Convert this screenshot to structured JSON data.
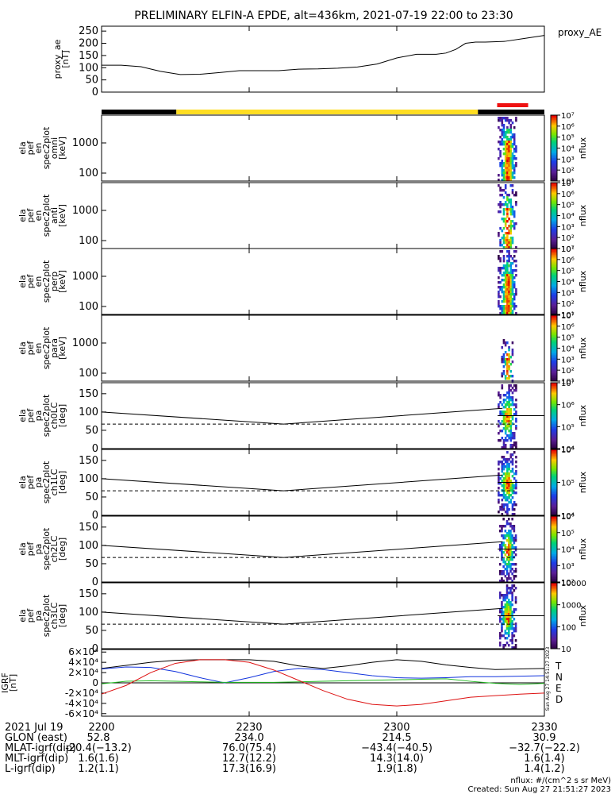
{
  "title": "PRELIMINARY ELFIN-A EPDE, alt=436km, 2021-07-19 22:00 to 23:30",
  "colors": {
    "background": "#ffffff",
    "sunlight_bar": "#ffdd22",
    "shadow_bar": "#000000",
    "science_zone_bar": "#ee1111",
    "grf_T": "#000000",
    "grf_N": "#1133dd",
    "grf_E": "#22bb22",
    "grf_D": "#dd1111"
  },
  "footer": {
    "created": "Created: Sun Aug 27 21:51:27 2023",
    "nflux_units": "nflux: #/(cm^2 s sr MeV)",
    "side_stamp": "Sun Aug 27 14:51:27 2023"
  },
  "chart_data": [
    {
      "id": "proxy_ae",
      "type": "line",
      "ylabel": [
        "proxy_ae",
        "[nT]"
      ],
      "legend": "proxy_AE",
      "ylim": [
        0,
        270
      ],
      "yticks": [
        "0",
        "50",
        "100",
        "150",
        "200",
        "250"
      ],
      "x_minutes": [
        0,
        4,
        8,
        12,
        16,
        20,
        24,
        28,
        30,
        32,
        36,
        40,
        44,
        48,
        52,
        56,
        60,
        64,
        68,
        70,
        72,
        74,
        76,
        78,
        82,
        86,
        90
      ],
      "y": [
        110,
        110,
        104,
        85,
        72,
        73,
        80,
        88,
        88,
        88,
        88,
        94,
        95,
        98,
        103,
        115,
        140,
        155,
        155,
        160,
        175,
        200,
        205,
        205,
        208,
        220,
        232
      ]
    },
    {
      "id": "orbit_bar",
      "type": "bar",
      "segments": [
        {
          "state": "shadow",
          "start": 0,
          "end": 15.2
        },
        {
          "state": "sunlight",
          "start": 15.2,
          "end": 76.5
        },
        {
          "state": "shadow",
          "start": 76.5,
          "end": 90
        }
      ],
      "science_zone": {
        "start": 80.4,
        "end": 86.7
      }
    },
    {
      "id": "spec_omni",
      "type": "heatmap",
      "ylabel": [
        "ela",
        "pef",
        "en",
        "spec2plot",
        "omni",
        "[keV]"
      ],
      "yticks": [
        "100",
        "1000"
      ],
      "scale": "log",
      "colorbar": {
        "label": "nflux",
        "ticks": [
          "10¹",
          "10²",
          "10³",
          "10⁴",
          "10⁵",
          "10⁶",
          "10⁷"
        ]
      },
      "active_minutes": [
        80.5,
        84.3
      ]
    },
    {
      "id": "spec_anti",
      "type": "heatmap",
      "ylabel": [
        "ela",
        "pef",
        "en",
        "spec2plot",
        "anti",
        "[keV]"
      ],
      "yticks": [
        "100",
        "1000"
      ],
      "scale": "log",
      "colorbar": {
        "label": "nflux",
        "ticks": [
          "10¹",
          "10²",
          "10³",
          "10⁴",
          "10⁵",
          "10⁶",
          "10⁷"
        ]
      },
      "active_minutes": [
        80.5,
        84.3
      ]
    },
    {
      "id": "spec_perp",
      "type": "heatmap",
      "ylabel": [
        "ela",
        "pef",
        "en",
        "spec2plot",
        "perp",
        "[keV]"
      ],
      "yticks": [
        "100",
        "1000"
      ],
      "scale": "log",
      "colorbar": {
        "label": "nflux",
        "ticks": [
          "10¹",
          "10²",
          "10³",
          "10⁴",
          "10⁵",
          "10⁶",
          "10⁷"
        ]
      },
      "active_minutes": [
        80.5,
        84.3
      ]
    },
    {
      "id": "spec_para",
      "type": "heatmap",
      "ylabel": [
        "ela",
        "pef",
        "en",
        "spec2plot",
        "para",
        "[keV]"
      ],
      "yticks": [
        "100",
        "1000"
      ],
      "scale": "log",
      "colorbar": {
        "label": "nflux",
        "ticks": [
          "10¹",
          "10²",
          "10³",
          "10⁴",
          "10⁵",
          "10⁶",
          "10⁷"
        ]
      },
      "active_minutes": [
        81.2,
        83.6
      ]
    },
    {
      "id": "pa_ch0",
      "type": "heatmap",
      "ylabel": [
        "ela",
        "pef",
        "pa",
        "spec2plot",
        "ch0LC",
        "[deg]"
      ],
      "yticks": [
        "0",
        "50",
        "100",
        "150"
      ],
      "ylim": [
        0,
        180
      ],
      "colorbar": {
        "label": "nflux",
        "ticks": [
          "10⁴",
          "10⁵",
          "10⁶",
          "10⁷"
        ]
      },
      "active_minutes": [
        80.5,
        84.3
      ],
      "lc_solid_deg": [
        {
          "x": 0,
          "y": 100
        },
        {
          "x": 37,
          "y": 67
        },
        {
          "x": 81.5,
          "y": 110
        }
      ],
      "lc_dashed_deg": [
        {
          "x": 0,
          "y": 67
        },
        {
          "x": 40,
          "y": 67
        },
        {
          "x": 84,
          "y": 67
        }
      ]
    },
    {
      "id": "pa_ch1",
      "type": "heatmap",
      "ylabel": [
        "ela",
        "pef",
        "pa",
        "spec2plot",
        "ch1LC",
        "[deg]"
      ],
      "yticks": [
        "0",
        "50",
        "100",
        "150"
      ],
      "ylim": [
        0,
        180
      ],
      "colorbar": {
        "label": "nflux",
        "ticks": [
          "10⁴",
          "10⁵",
          "10⁶"
        ]
      },
      "active_minutes": [
        80.5,
        84.3
      ],
      "lc_solid_deg": [
        {
          "x": 0,
          "y": 100
        },
        {
          "x": 37,
          "y": 67
        },
        {
          "x": 81.5,
          "y": 110
        }
      ],
      "lc_dashed_deg": [
        {
          "x": 0,
          "y": 67
        },
        {
          "x": 40,
          "y": 67
        },
        {
          "x": 84,
          "y": 67
        }
      ]
    },
    {
      "id": "pa_ch2",
      "type": "heatmap",
      "ylabel": [
        "ela",
        "pef",
        "pa",
        "spec2plot",
        "ch2LC",
        "[deg]"
      ],
      "yticks": [
        "0",
        "50",
        "100",
        "150"
      ],
      "ylim": [
        0,
        180
      ],
      "colorbar": {
        "label": "nflux",
        "ticks": [
          "10²",
          "10³",
          "10⁴",
          "10⁵",
          "10⁶"
        ]
      },
      "active_minutes": [
        80.8,
        84.0
      ],
      "lc_solid_deg": [
        {
          "x": 0,
          "y": 100
        },
        {
          "x": 37,
          "y": 67
        },
        {
          "x": 81.5,
          "y": 110
        }
      ],
      "lc_dashed_deg": [
        {
          "x": 0,
          "y": 67
        },
        {
          "x": 40,
          "y": 67
        },
        {
          "x": 84,
          "y": 67
        }
      ]
    },
    {
      "id": "pa_ch3",
      "type": "heatmap",
      "ylabel": [
        "ela",
        "pef",
        "pa",
        "spec2plot",
        "ch3LC",
        "[deg]"
      ],
      "yticks": [
        "0",
        "50",
        "100",
        "150"
      ],
      "ylim": [
        0,
        180
      ],
      "colorbar": {
        "label": "nflux",
        "ticks": [
          "10",
          "100",
          "1000",
          "10000"
        ]
      },
      "active_minutes": [
        80.8,
        84.0
      ],
      "lc_solid_deg": [
        {
          "x": 0,
          "y": 100
        },
        {
          "x": 37,
          "y": 67
        },
        {
          "x": 81.5,
          "y": 110
        }
      ],
      "lc_dashed_deg": [
        {
          "x": 0,
          "y": 67
        },
        {
          "x": 40,
          "y": 67
        },
        {
          "x": 84,
          "y": 67
        }
      ]
    },
    {
      "id": "igrf",
      "type": "line",
      "ylabel": [
        "IGRF",
        "[nT]"
      ],
      "ylim": [
        -65000,
        65000
      ],
      "yticks": [
        "-6×10⁴",
        "-4×10⁴",
        "-2×10⁴",
        "0",
        "2×10⁴",
        "4×10⁴",
        "6×10⁴"
      ],
      "legend": [
        "T",
        "N",
        "E",
        "D"
      ],
      "x_minutes": [
        0,
        5,
        10,
        15,
        20,
        25,
        30,
        35,
        40,
        45,
        50,
        55,
        60,
        65,
        70,
        75,
        80,
        85,
        90
      ],
      "series": [
        {
          "name": "T",
          "values": [
            28000,
            34000,
            40000,
            44000,
            45000,
            45000,
            45000,
            42000,
            33000,
            28000,
            33000,
            40000,
            45000,
            42000,
            35000,
            30000,
            26000,
            27000,
            28000
          ]
        },
        {
          "name": "N",
          "values": [
            27000,
            31000,
            30000,
            22000,
            10000,
            0,
            10000,
            22000,
            28000,
            26000,
            20000,
            14000,
            10000,
            9000,
            10000,
            12000,
            12000,
            13000,
            14000
          ]
        },
        {
          "name": "E",
          "values": [
            -2000,
            3000,
            4000,
            3000,
            2000,
            1000,
            1000,
            1000,
            2000,
            3000,
            4000,
            5000,
            6000,
            7000,
            8000,
            3000,
            -1000,
            -3000,
            -1000
          ]
        },
        {
          "name": "D",
          "values": [
            -22000,
            -5000,
            20000,
            38000,
            45000,
            45000,
            40000,
            25000,
            5000,
            -15000,
            -32000,
            -42000,
            -45000,
            -42000,
            -35000,
            -28000,
            -25000,
            -22000,
            -20000
          ]
        }
      ]
    }
  ],
  "time_axis": {
    "label": "2021 Jul 19",
    "ticks": [
      "2200",
      "2230",
      "2300",
      "2330"
    ],
    "tick_minutes": [
      0,
      30,
      60,
      90
    ]
  },
  "ephemeris": [
    {
      "label": "GLON (east)",
      "values": [
        "52.8",
        "234.0",
        "214.5",
        "30.9"
      ]
    },
    {
      "label": "MLAT-igrf(dip)",
      "values": [
        "-20.4(−13.2)",
        "76.0(75.4)",
        "−43.4(−40.5)",
        "−32.7(−22.2)"
      ]
    },
    {
      "label": "MLT-igrf(dip)",
      "values": [
        "1.6(1.6)",
        "12.7(12.2)",
        "14.3(14.0)",
        "1.6(1.4)"
      ]
    },
    {
      "label": "L-igrf(dip)",
      "values": [
        "1.2(1.1)",
        "17.3(16.9)",
        "1.9(1.8)",
        "1.4(1.2)"
      ]
    }
  ]
}
